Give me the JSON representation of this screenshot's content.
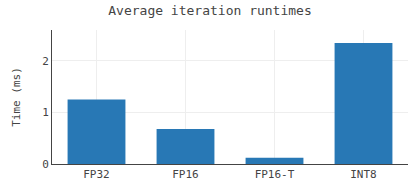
{
  "chart_data": {
    "type": "bar",
    "title": "Average iteration runtimes",
    "ylabel": "Time (ms)",
    "categories": [
      "FP32",
      "FP16",
      "FP16-T",
      "INT8"
    ],
    "values": [
      1.25,
      0.68,
      0.12,
      2.35
    ],
    "color": "#2878b5",
    "ylim": [
      0,
      2.6
    ],
    "yticks": [
      0,
      1,
      2
    ],
    "grid": true
  }
}
